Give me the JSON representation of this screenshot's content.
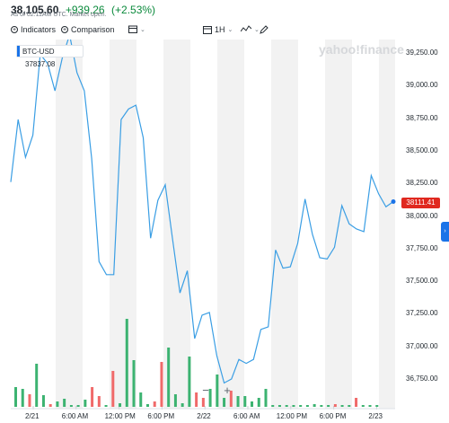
{
  "quote": {
    "price": "38,105.60",
    "change": "+939.26",
    "percent": "(+2.53%)",
    "as_of": "As of 02:11AM UTC. Market open."
  },
  "toolbar": {
    "indicators": "Indicators",
    "comparison": "Comparison",
    "interval": "1H"
  },
  "legend": {
    "symbol": "BTC-USD",
    "value": "37837.08"
  },
  "watermark": "yahoo!finance",
  "price_tag": "38111.41",
  "zoom": {
    "minus": "−",
    "plus": "+"
  },
  "colors": {
    "line": "#3a9ee4",
    "up": "#3cb371",
    "down": "#f06a6a",
    "band": "#f2f2f2",
    "accent": "#1a73e8"
  },
  "chart_data": {
    "type": "line",
    "ylim": [
      36500,
      39500
    ],
    "yticks": [
      "39,250.00",
      "39,000.00",
      "38,750.00",
      "38,500.00",
      "38,250.00",
      "38,000.00",
      "37,750.00",
      "37,500.00",
      "37,250.00",
      "37,000.00",
      "36,750.00"
    ],
    "xticks": [
      "2/21",
      "6:00 AM",
      "12:00 PM",
      "6:00 PM",
      "2/22",
      "6:00 AM",
      "12:00 PM",
      "6:00 PM",
      "2/23"
    ],
    "series": [
      {
        "values": [
          38260,
          38740,
          38450,
          38620,
          39240,
          39170,
          38960,
          39210,
          39390,
          39100,
          38960,
          38440,
          37650,
          37550,
          37550,
          38740,
          38820,
          38850,
          38600,
          37830,
          38120,
          38240,
          37820,
          37410,
          37580,
          37060,
          37240,
          37260,
          36930,
          36720,
          36750,
          36900,
          36870,
          36900,
          37130,
          37150,
          37740,
          37600,
          37610,
          37790,
          38130,
          37860,
          37680,
          37670,
          37760,
          38080,
          37940,
          37900,
          37880,
          38310,
          38170,
          38070,
          38110
        ]
      }
    ],
    "volume": [
      {
        "v": 22,
        "c": "up"
      },
      {
        "v": 20,
        "c": "up"
      },
      {
        "v": 14,
        "c": "down"
      },
      {
        "v": 48,
        "c": "up"
      },
      {
        "v": 13,
        "c": "up"
      },
      {
        "v": 3,
        "c": "down"
      },
      {
        "v": 6,
        "c": "up"
      },
      {
        "v": 9,
        "c": "up"
      },
      {
        "v": 2,
        "c": "up"
      },
      {
        "v": 2,
        "c": "up"
      },
      {
        "v": 8,
        "c": "up"
      },
      {
        "v": 22,
        "c": "down"
      },
      {
        "v": 12,
        "c": "down"
      },
      {
        "v": 2,
        "c": "up"
      },
      {
        "v": 40,
        "c": "down"
      },
      {
        "v": 4,
        "c": "up"
      },
      {
        "v": 98,
        "c": "up"
      },
      {
        "v": 52,
        "c": "up"
      },
      {
        "v": 16,
        "c": "up"
      },
      {
        "v": 3,
        "c": "up"
      },
      {
        "v": 6,
        "c": "down"
      },
      {
        "v": 50,
        "c": "down"
      },
      {
        "v": 66,
        "c": "up"
      },
      {
        "v": 14,
        "c": "up"
      },
      {
        "v": 4,
        "c": "up"
      },
      {
        "v": 56,
        "c": "up"
      },
      {
        "v": 16,
        "c": "down"
      },
      {
        "v": 10,
        "c": "down"
      },
      {
        "v": 20,
        "c": "up"
      },
      {
        "v": 36,
        "c": "up"
      },
      {
        "v": 10,
        "c": "up"
      },
      {
        "v": 18,
        "c": "down"
      },
      {
        "v": 12,
        "c": "up"
      },
      {
        "v": 12,
        "c": "up"
      },
      {
        "v": 6,
        "c": "up"
      },
      {
        "v": 10,
        "c": "up"
      },
      {
        "v": 20,
        "c": "up"
      },
      {
        "v": 2,
        "c": "up"
      },
      {
        "v": 2,
        "c": "up"
      },
      {
        "v": 2,
        "c": "up"
      },
      {
        "v": 2,
        "c": "up"
      },
      {
        "v": 2,
        "c": "up"
      },
      {
        "v": 2,
        "c": "up"
      },
      {
        "v": 3,
        "c": "up"
      },
      {
        "v": 2,
        "c": "up"
      },
      {
        "v": 2,
        "c": "up"
      },
      {
        "v": 3,
        "c": "down"
      },
      {
        "v": 2,
        "c": "up"
      },
      {
        "v": 2,
        "c": "up"
      },
      {
        "v": 10,
        "c": "down"
      },
      {
        "v": 2,
        "c": "up"
      },
      {
        "v": 2,
        "c": "up"
      },
      {
        "v": 2,
        "c": "up"
      }
    ]
  }
}
